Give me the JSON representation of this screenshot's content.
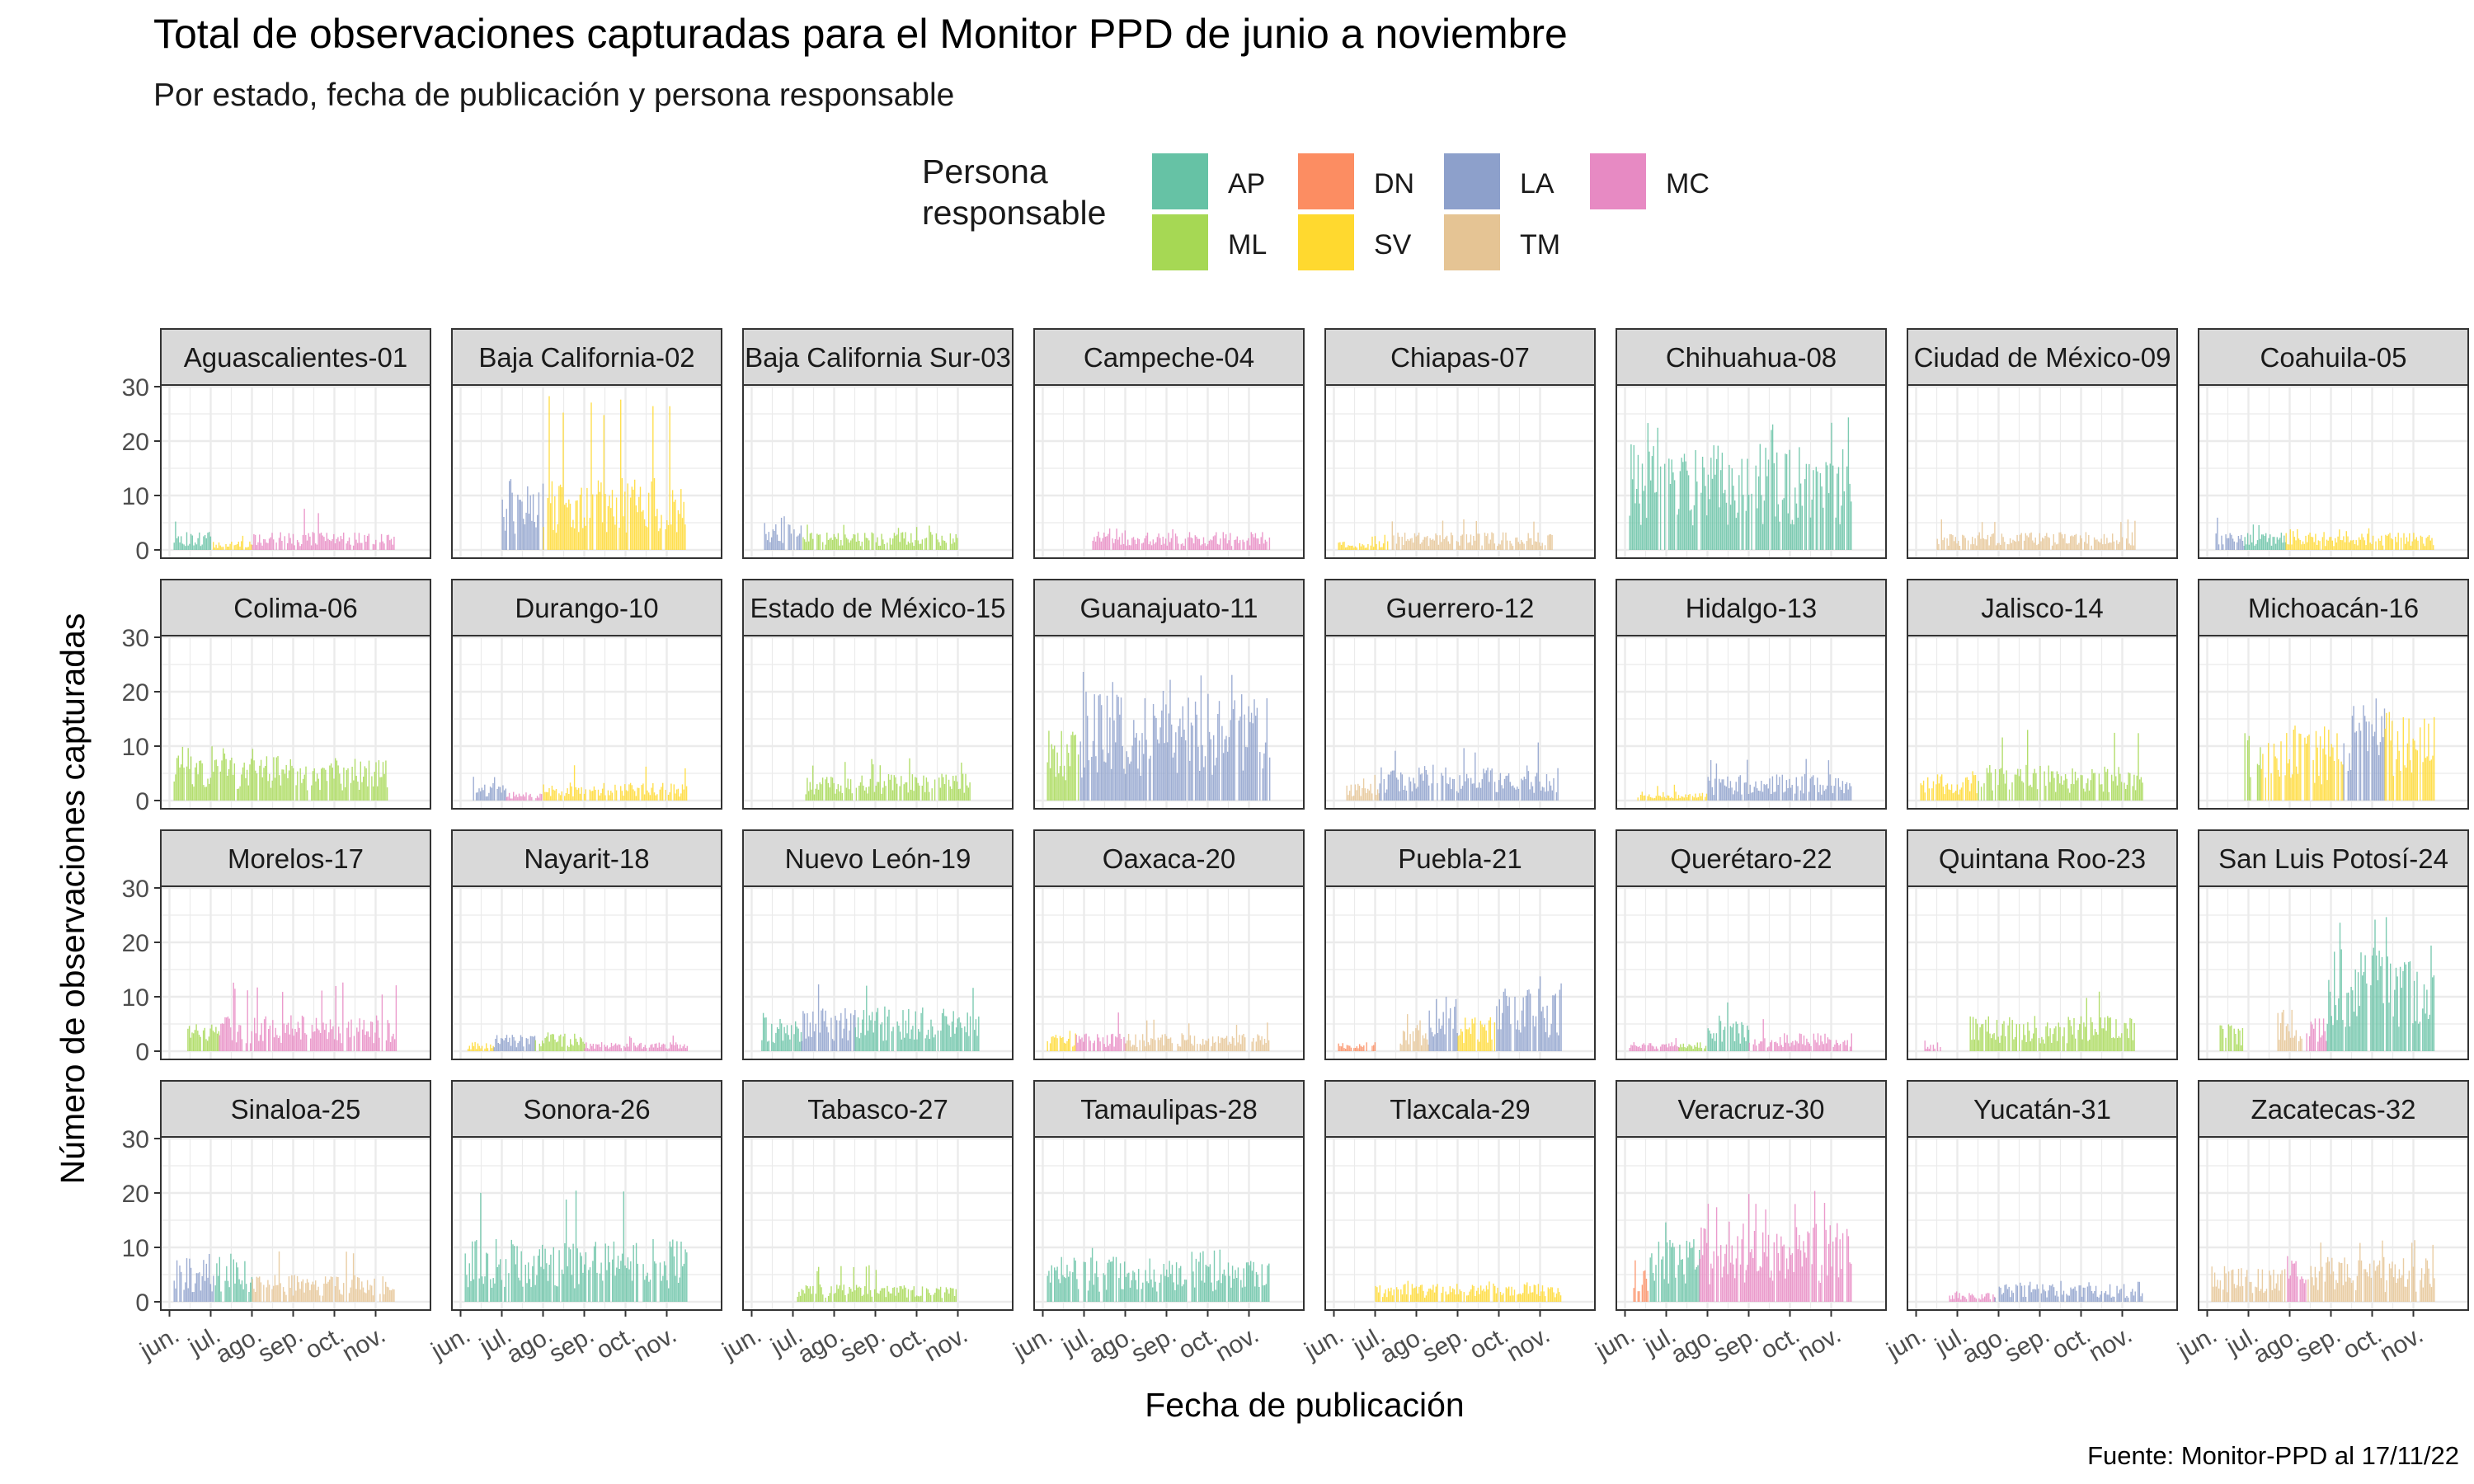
{
  "title": "Total de observaciones capturadas para el Monitor PPD de junio a noviembre",
  "subtitle": "Por estado, fecha de publicación y persona responsable",
  "caption": "Fuente: Monitor-PPD al 17/11/22",
  "chart_data": {
    "type": "bar",
    "layout": "facet_wrap",
    "facet_rows": 4,
    "facet_cols": 8,
    "xlabel": "Fecha de publicación",
    "ylabel": "Número de observaciones capturadas",
    "x_ticks": [
      "jun.",
      "jul.",
      "ago.",
      "sep.",
      "oct.",
      "nov."
    ],
    "y_ticks": [
      "0",
      "10",
      "20",
      "30"
    ],
    "ylim": [
      0,
      30
    ],
    "grid": true,
    "legend": {
      "title_lines": [
        "Persona",
        "responsable"
      ],
      "placement": "top",
      "entries": [
        {
          "key": "AP",
          "color": "#66c2a5"
        },
        {
          "key": "DN",
          "color": "#fc8d62"
        },
        {
          "key": "LA",
          "color": "#8da0cb"
        },
        {
          "key": "MC",
          "color": "#e78ac3"
        },
        {
          "key": "ML",
          "color": "#a6d854"
        },
        {
          "key": "SV",
          "color": "#ffd92f"
        },
        {
          "key": "TM",
          "color": "#e5c494"
        }
      ]
    },
    "note": "Values are approximate daily counts by period, read from the bars.",
    "panels": [
      {
        "state": "Aguascalientes-01",
        "segments": [
          {
            "p": "AP",
            "months": [
              0.1,
              1.05
            ],
            "avg": 2.0,
            "max": 6
          },
          {
            "p": "SV",
            "months": [
              1.05,
              2.0
            ],
            "avg": 1.0,
            "max": 3
          },
          {
            "p": "MC",
            "months": [
              2.0,
              5.5
            ],
            "avg": 2.0,
            "max": 8
          }
        ]
      },
      {
        "state": "Baja California-02",
        "segments": [
          {
            "p": "LA",
            "months": [
              1.0,
              2.0
            ],
            "avg": 8.0,
            "max": 17
          },
          {
            "p": "SV",
            "months": [
              2.0,
              5.5
            ],
            "avg": 8.0,
            "max": 29
          }
        ]
      },
      {
        "state": "Baja California Sur-03",
        "segments": [
          {
            "p": "LA",
            "months": [
              0.3,
              1.2
            ],
            "avg": 3.0,
            "max": 7
          },
          {
            "p": "ML",
            "months": [
              1.2,
              5.0
            ],
            "avg": 2.0,
            "max": 5
          }
        ]
      },
      {
        "state": "Campeche-04",
        "segments": [
          {
            "p": "MC",
            "months": [
              1.2,
              5.5
            ],
            "avg": 2.0,
            "max": 4
          }
        ]
      },
      {
        "state": "Chiapas-07",
        "segments": [
          {
            "p": "SV",
            "months": [
              0.1,
              1.3
            ],
            "avg": 1.0,
            "max": 3
          },
          {
            "p": "TM",
            "months": [
              1.3,
              5.3
            ],
            "avg": 2.0,
            "max": 6
          }
        ]
      },
      {
        "state": "Chihuahua-08",
        "segments": [
          {
            "p": "AP",
            "months": [
              0.1,
              5.5
            ],
            "avg": 12.0,
            "max": 26
          }
        ]
      },
      {
        "state": "Ciudad de México-09",
        "segments": [
          {
            "p": "TM",
            "months": [
              0.5,
              5.3
            ],
            "avg": 2.0,
            "max": 6
          }
        ]
      },
      {
        "state": "Coahuila-05",
        "segments": [
          {
            "p": "LA",
            "months": [
              0.2,
              0.9
            ],
            "avg": 2.0,
            "max": 6
          },
          {
            "p": "AP",
            "months": [
              0.9,
              1.9
            ],
            "avg": 2.0,
            "max": 5
          },
          {
            "p": "SV",
            "months": [
              1.9,
              5.5
            ],
            "avg": 2.0,
            "max": 4
          }
        ]
      },
      {
        "state": "Colima-06",
        "segments": [
          {
            "p": "ML",
            "months": [
              0.1,
              5.3
            ],
            "avg": 5.0,
            "max": 10
          }
        ]
      },
      {
        "state": "Durango-10",
        "segments": [
          {
            "p": "LA",
            "months": [
              0.3,
              1.1
            ],
            "avg": 2.0,
            "max": 5
          },
          {
            "p": "MC",
            "months": [
              1.1,
              2.0
            ],
            "avg": 1.0,
            "max": 3
          },
          {
            "p": "SV",
            "months": [
              2.0,
              5.5
            ],
            "avg": 2.0,
            "max": 7
          }
        ]
      },
      {
        "state": "Estado de México-15",
        "segments": [
          {
            "p": "ML",
            "months": [
              1.3,
              5.3
            ],
            "avg": 3.0,
            "max": 8
          }
        ]
      },
      {
        "state": "Guanajuato-11",
        "segments": [
          {
            "p": "ML",
            "months": [
              0.1,
              0.9
            ],
            "avg": 8.0,
            "max": 16
          },
          {
            "p": "LA",
            "months": [
              0.9,
              5.5
            ],
            "avg": 12.0,
            "max": 24
          }
        ]
      },
      {
        "state": "Guerrero-12",
        "segments": [
          {
            "p": "TM",
            "months": [
              0.3,
              1.1
            ],
            "avg": 2.0,
            "max": 5
          },
          {
            "p": "LA",
            "months": [
              1.1,
              5.5
            ],
            "avg": 4.0,
            "max": 11
          }
        ]
      },
      {
        "state": "Hidalgo-13",
        "segments": [
          {
            "p": "SV",
            "months": [
              0.3,
              2.0
            ],
            "avg": 1.0,
            "max": 3
          },
          {
            "p": "LA",
            "months": [
              2.0,
              5.5
            ],
            "avg": 3.0,
            "max": 8
          }
        ]
      },
      {
        "state": "Jalisco-14",
        "segments": [
          {
            "p": "SV",
            "months": [
              0.1,
              1.5
            ],
            "avg": 3.0,
            "max": 6
          },
          {
            "p": "ML",
            "months": [
              1.5,
              5.5
            ],
            "avg": 4.0,
            "max": 13
          }
        ]
      },
      {
        "state": "Michoacán-16",
        "segments": [
          {
            "p": "ML",
            "months": [
              0.9,
              1.3
            ],
            "avg": 8.0,
            "max": 13
          },
          {
            "p": "SV",
            "months": [
              1.3,
              3.3
            ],
            "avg": 8.0,
            "max": 14
          },
          {
            "p": "LA",
            "months": [
              3.3,
              4.3
            ],
            "avg": 12.0,
            "max": 24
          },
          {
            "p": "SV",
            "months": [
              4.3,
              5.5
            ],
            "avg": 10.0,
            "max": 18
          }
        ]
      },
      {
        "state": "Morelos-17",
        "segments": [
          {
            "p": "ML",
            "months": [
              0.4,
              1.2
            ],
            "avg": 3.0,
            "max": 5
          },
          {
            "p": "MC",
            "months": [
              1.2,
              5.5
            ],
            "avg": 4.0,
            "max": 13
          }
        ]
      },
      {
        "state": "Nayarit-18",
        "segments": [
          {
            "p": "SV",
            "months": [
              0.1,
              0.8
            ],
            "avg": 1.0,
            "max": 2
          },
          {
            "p": "LA",
            "months": [
              0.8,
              1.8
            ],
            "avg": 2.0,
            "max": 3
          },
          {
            "p": "ML",
            "months": [
              1.8,
              3.0
            ],
            "avg": 2.0,
            "max": 4
          },
          {
            "p": "MC",
            "months": [
              3.0,
              5.5
            ],
            "avg": 1.0,
            "max": 3
          }
        ]
      },
      {
        "state": "Nuevo León-19",
        "segments": [
          {
            "p": "AP",
            "months": [
              0.2,
              1.2
            ],
            "avg": 4.0,
            "max": 8
          },
          {
            "p": "LA",
            "months": [
              1.2,
              2.5
            ],
            "avg": 5.0,
            "max": 14
          },
          {
            "p": "AP",
            "months": [
              2.5,
              5.5
            ],
            "avg": 5.0,
            "max": 13
          }
        ]
      },
      {
        "state": "Oaxaca-20",
        "segments": [
          {
            "p": "SV",
            "months": [
              0.1,
              0.8
            ],
            "avg": 2.0,
            "max": 4
          },
          {
            "p": "MC",
            "months": [
              0.8,
              2.0
            ],
            "avg": 2.0,
            "max": 8
          },
          {
            "p": "TM",
            "months": [
              2.0,
              5.5
            ],
            "avg": 2.0,
            "max": 6
          }
        ]
      },
      {
        "state": "Puebla-21",
        "segments": [
          {
            "p": "DN",
            "months": [
              0.1,
              1.0
            ],
            "avg": 1.0,
            "max": 3
          },
          {
            "p": "TM",
            "months": [
              1.6,
              2.3
            ],
            "avg": 3.0,
            "max": 7
          },
          {
            "p": "LA",
            "months": [
              2.3,
              3.0
            ],
            "avg": 6.0,
            "max": 11
          },
          {
            "p": "SV",
            "months": [
              3.0,
              3.9
            ],
            "avg": 4.0,
            "max": 7
          },
          {
            "p": "LA",
            "months": [
              3.9,
              5.5
            ],
            "avg": 7.0,
            "max": 14
          }
        ]
      },
      {
        "state": "Querétaro-22",
        "segments": [
          {
            "p": "MC",
            "months": [
              0.1,
              1.3
            ],
            "avg": 1.0,
            "max": 3
          },
          {
            "p": "ML",
            "months": [
              1.3,
              2.0
            ],
            "avg": 1.0,
            "max": 3
          },
          {
            "p": "AP",
            "months": [
              2.0,
              3.0
            ],
            "avg": 4.0,
            "max": 9
          },
          {
            "p": "MC",
            "months": [
              3.0,
              5.5
            ],
            "avg": 2.0,
            "max": 7
          }
        ]
      },
      {
        "state": "Quintana Roo-23",
        "segments": [
          {
            "p": "MC",
            "months": [
              0.2,
              0.6
            ],
            "avg": 1.0,
            "max": 2
          },
          {
            "p": "ML",
            "months": [
              1.3,
              5.3
            ],
            "avg": 4.0,
            "max": 12
          }
        ]
      },
      {
        "state": "San Luis Potosí-24",
        "segments": [
          {
            "p": "ML",
            "months": [
              0.3,
              0.9
            ],
            "avg": 3.0,
            "max": 5
          },
          {
            "p": "TM",
            "months": [
              1.7,
              2.3
            ],
            "avg": 5.0,
            "max": 11
          },
          {
            "p": "MC",
            "months": [
              2.4,
              2.9
            ],
            "avg": 4.0,
            "max": 6
          },
          {
            "p": "AP",
            "months": [
              2.9,
              5.5
            ],
            "avg": 12.0,
            "max": 28
          }
        ]
      },
      {
        "state": "Sinaloa-25",
        "segments": [
          {
            "p": "LA",
            "months": [
              0.1,
              1.1
            ],
            "avg": 5.0,
            "max": 10
          },
          {
            "p": "AP",
            "months": [
              1.1,
              2.0
            ],
            "avg": 5.0,
            "max": 11
          },
          {
            "p": "TM",
            "months": [
              2.0,
              5.5
            ],
            "avg": 3.0,
            "max": 10
          }
        ]
      },
      {
        "state": "Sonora-26",
        "segments": [
          {
            "p": "AP",
            "months": [
              0.1,
              5.5
            ],
            "avg": 7.0,
            "max": 21
          }
        ]
      },
      {
        "state": "Tabasco-27",
        "segments": [
          {
            "p": "ML",
            "months": [
              1.1,
              5.0
            ],
            "avg": 2.0,
            "max": 7
          }
        ]
      },
      {
        "state": "Tamaulipas-28",
        "segments": [
          {
            "p": "AP",
            "months": [
              0.1,
              5.5
            ],
            "avg": 5.0,
            "max": 10
          }
        ]
      },
      {
        "state": "Tlaxcala-29",
        "segments": [
          {
            "p": "SV",
            "months": [
              1.0,
              5.5
            ],
            "avg": 2.0,
            "max": 4
          }
        ]
      },
      {
        "state": "Veracruz-30",
        "segments": [
          {
            "p": "DN",
            "months": [
              0.2,
              0.6
            ],
            "avg": 4.0,
            "max": 9
          },
          {
            "p": "AP",
            "months": [
              0.6,
              1.8
            ],
            "avg": 7.0,
            "max": 16
          },
          {
            "p": "MC",
            "months": [
              1.8,
              5.5
            ],
            "avg": 9.0,
            "max": 21
          }
        ]
      },
      {
        "state": "Yucatán-31",
        "segments": [
          {
            "p": "MC",
            "months": [
              0.8,
              1.9
            ],
            "avg": 1.0,
            "max": 2
          },
          {
            "p": "LA",
            "months": [
              1.9,
              5.5
            ],
            "avg": 2.0,
            "max": 4
          }
        ]
      },
      {
        "state": "Zacatecas-32",
        "segments": [
          {
            "p": "TM",
            "months": [
              0.1,
              1.9
            ],
            "avg": 4.0,
            "max": 9
          },
          {
            "p": "MC",
            "months": [
              1.9,
              2.4
            ],
            "avg": 5.0,
            "max": 9
          },
          {
            "p": "TM",
            "months": [
              2.4,
              5.5
            ],
            "avg": 5.0,
            "max": 13
          }
        ]
      }
    ]
  }
}
